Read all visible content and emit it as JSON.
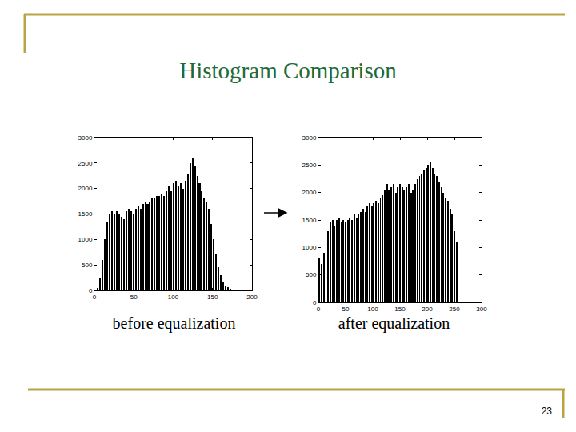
{
  "slide": {
    "title": "Histogram Comparison",
    "page": 23
  },
  "chart_data": [
    {
      "type": "histogram",
      "title": "before equalization",
      "bins": [
        0,
        3,
        6,
        9,
        12,
        15,
        18,
        21,
        24,
        27,
        30,
        33,
        36,
        39,
        42,
        45,
        48,
        51,
        54,
        57,
        60,
        63,
        66,
        69,
        72,
        75,
        78,
        81,
        84,
        87,
        90,
        93,
        96,
        99,
        102,
        105,
        108,
        111,
        114,
        117,
        120,
        123,
        126,
        129,
        132,
        135,
        138,
        141,
        144,
        147,
        150,
        153,
        156,
        159,
        162,
        165,
        168,
        171,
        174,
        177,
        180
      ],
      "counts": [
        0,
        50,
        250,
        600,
        1000,
        1350,
        1500,
        1550,
        1500,
        1550,
        1500,
        1450,
        1400,
        1550,
        1600,
        1550,
        1500,
        1600,
        1650,
        1600,
        1700,
        1750,
        1700,
        1750,
        1800,
        1800,
        1850,
        1850,
        1900,
        1850,
        1950,
        2050,
        1950,
        2100,
        2150,
        2050,
        2100,
        2000,
        2150,
        2300,
        2500,
        2600,
        2450,
        2250,
        2100,
        1950,
        1800,
        1750,
        1600,
        1300,
        1000,
        700,
        450,
        300,
        180,
        100,
        60,
        30,
        10,
        0
      ],
      "color": "#000000",
      "xlim": [
        0,
        200
      ],
      "xticks": [
        0,
        50,
        100,
        150,
        200
      ],
      "ylim": [
        0,
        3000
      ],
      "yticks": [
        0,
        500,
        1000,
        1500,
        2000,
        2500,
        3000
      ],
      "grid": false
    },
    {
      "type": "histogram",
      "title": "after equalization",
      "bins": [
        0,
        4,
        8,
        12,
        16,
        20,
        24,
        28,
        32,
        36,
        40,
        44,
        48,
        52,
        56,
        60,
        64,
        68,
        72,
        76,
        80,
        84,
        88,
        92,
        96,
        100,
        104,
        108,
        112,
        116,
        120,
        124,
        128,
        132,
        136,
        140,
        144,
        148,
        152,
        156,
        160,
        164,
        168,
        172,
        176,
        180,
        184,
        188,
        192,
        196,
        200,
        204,
        208,
        212,
        216,
        220,
        224,
        228,
        232,
        236,
        240,
        244,
        248,
        252,
        256
      ],
      "counts": [
        800,
        700,
        900,
        1100,
        1300,
        1450,
        1500,
        1400,
        1500,
        1550,
        1450,
        1500,
        1450,
        1500,
        1550,
        1500,
        1600,
        1550,
        1600,
        1650,
        1700,
        1650,
        1750,
        1800,
        1750,
        1800,
        1850,
        1800,
        1900,
        1950,
        2050,
        2150,
        2050,
        2100,
        2150,
        2000,
        2100,
        2150,
        2100,
        2050,
        2100,
        2150,
        2000,
        2050,
        2150,
        2250,
        2300,
        2350,
        2400,
        2450,
        2500,
        2550,
        2450,
        2350,
        2300,
        2200,
        2100,
        2000,
        1900,
        1850,
        1700,
        1600,
        1300,
        1100
      ],
      "color": "#000000",
      "xlim": [
        0,
        300
      ],
      "xticks": [
        0,
        50,
        100,
        150,
        200,
        250,
        300
      ],
      "ylim": [
        0,
        3000
      ],
      "yticks": [
        0,
        500,
        1000,
        1500,
        2000,
        2500,
        3000
      ],
      "grid": false
    }
  ]
}
